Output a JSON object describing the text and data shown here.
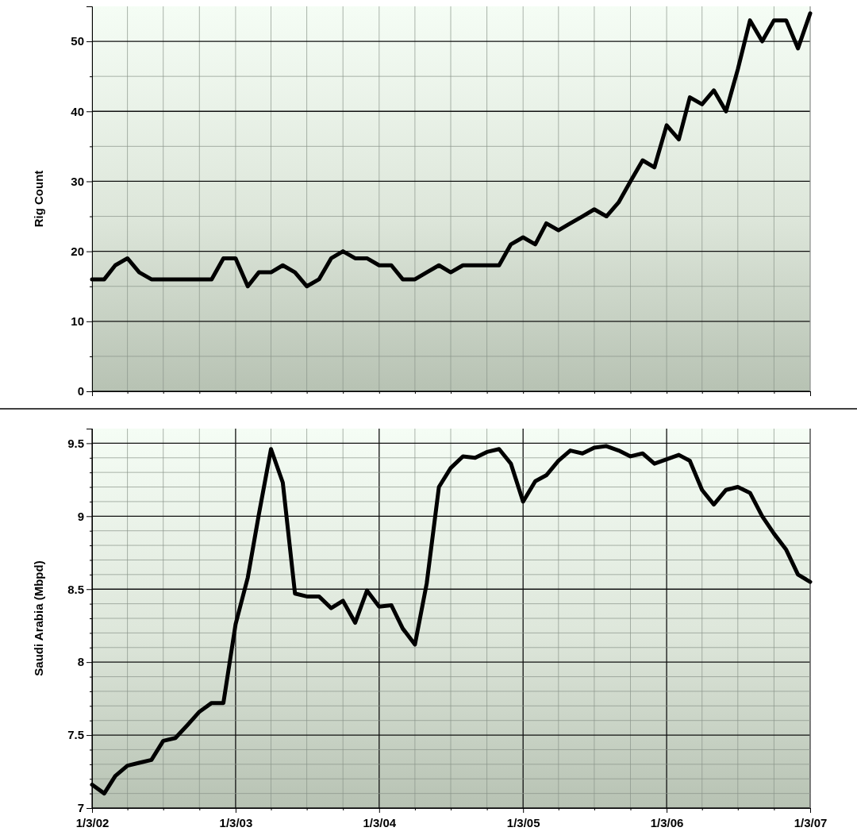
{
  "chart_data": [
    {
      "type": "line",
      "ylabel": "Rig Count",
      "tick_labels": "y",
      "grid": true,
      "marker": "none",
      "line_style": "solid",
      "x": [
        "2002-01",
        "2002-02",
        "2002-03",
        "2002-04",
        "2002-05",
        "2002-06",
        "2002-07",
        "2002-08",
        "2002-09",
        "2002-10",
        "2002-11",
        "2002-12",
        "2003-01",
        "2003-02",
        "2003-03",
        "2003-04",
        "2003-05",
        "2003-06",
        "2003-07",
        "2003-08",
        "2003-09",
        "2003-10",
        "2003-11",
        "2003-12",
        "2004-01",
        "2004-02",
        "2004-03",
        "2004-04",
        "2004-05",
        "2004-06",
        "2004-07",
        "2004-08",
        "2004-09",
        "2004-10",
        "2004-11",
        "2004-12",
        "2005-01",
        "2005-02",
        "2005-03",
        "2005-04",
        "2005-05",
        "2005-06",
        "2005-07",
        "2005-08",
        "2005-09",
        "2005-10",
        "2005-11",
        "2005-12",
        "2006-01",
        "2006-02",
        "2006-03",
        "2006-04",
        "2006-05",
        "2006-06",
        "2006-07",
        "2006-08",
        "2006-09",
        "2006-10",
        "2006-11",
        "2006-12",
        "2007-01"
      ],
      "xlim": [
        "2002-01",
        "2007-01"
      ],
      "xticks": [
        {
          "value": "2002-01",
          "label": null
        },
        {
          "value": "2002-04",
          "label": null
        },
        {
          "value": "2002-07",
          "label": null
        },
        {
          "value": "2002-10",
          "label": null
        },
        {
          "value": "2003-01",
          "label": null
        },
        {
          "value": "2003-04",
          "label": null
        },
        {
          "value": "2003-07",
          "label": null
        },
        {
          "value": "2003-10",
          "label": null
        },
        {
          "value": "2004-01",
          "label": null
        },
        {
          "value": "2004-04",
          "label": null
        },
        {
          "value": "2004-07",
          "label": null
        },
        {
          "value": "2004-10",
          "label": null
        },
        {
          "value": "2005-01",
          "label": null
        },
        {
          "value": "2005-04",
          "label": null
        },
        {
          "value": "2005-07",
          "label": null
        },
        {
          "value": "2005-10",
          "label": null
        },
        {
          "value": "2006-01",
          "label": null
        },
        {
          "value": "2006-04",
          "label": null
        },
        {
          "value": "2006-07",
          "label": null
        },
        {
          "value": "2006-10",
          "label": null
        },
        {
          "value": "2007-01",
          "label": null
        }
      ],
      "ylim": [
        0,
        55
      ],
      "yticks": [
        0,
        {
          "value": 5,
          "label": null
        },
        10,
        {
          "value": 15,
          "label": null
        },
        20,
        {
          "value": 25,
          "label": null
        },
        30,
        {
          "value": 35,
          "label": null
        },
        40,
        {
          "value": 45,
          "label": null
        },
        50
      ],
      "series": [
        {
          "color": "#000000",
          "values": [
            16,
            16,
            18,
            19,
            17,
            16,
            16,
            16,
            16,
            16,
            16,
            19,
            19,
            15,
            17,
            17,
            18,
            17,
            15,
            16,
            19,
            20,
            19,
            19,
            18,
            18,
            16,
            16,
            17,
            18,
            17,
            18,
            18,
            18,
            18,
            21,
            22,
            21,
            24,
            23,
            24,
            25,
            26,
            25,
            27,
            30,
            33,
            32,
            38,
            36,
            42,
            41,
            43,
            40,
            46,
            53,
            50,
            53,
            53,
            49,
            54
          ]
        }
      ]
    },
    {
      "type": "line",
      "ylabel": "Saudi Arabia (Mbpd)",
      "grid": true,
      "marker": "none",
      "line_style": "solid",
      "x": [
        "2002-01",
        "2002-02",
        "2002-03",
        "2002-04",
        "2002-05",
        "2002-06",
        "2002-07",
        "2002-08",
        "2002-09",
        "2002-10",
        "2002-11",
        "2002-12",
        "2003-01",
        "2003-02",
        "2003-03",
        "2003-04",
        "2003-05",
        "2003-06",
        "2003-07",
        "2003-08",
        "2003-09",
        "2003-10",
        "2003-11",
        "2003-12",
        "2004-01",
        "2004-02",
        "2004-03",
        "2004-04",
        "2004-05",
        "2004-06",
        "2004-07",
        "2004-08",
        "2004-09",
        "2004-10",
        "2004-11",
        "2004-12",
        "2005-01",
        "2005-02",
        "2005-03",
        "2005-04",
        "2005-05",
        "2005-06",
        "2005-07",
        "2005-08",
        "2005-09",
        "2005-10",
        "2005-11",
        "2005-12",
        "2006-01",
        "2006-02",
        "2006-03",
        "2006-04",
        "2006-05",
        "2006-06",
        "2006-07",
        "2006-08",
        "2006-09",
        "2006-10",
        "2006-11",
        "2006-12",
        "2007-01"
      ],
      "xlim": [
        "2002-01",
        "2007-01"
      ],
      "xticks": [
        {
          "value": "2002-01",
          "label": "1/3/02"
        },
        {
          "value": "2002-04",
          "label": null
        },
        {
          "value": "2002-07",
          "label": null
        },
        {
          "value": "2002-10",
          "label": null
        },
        {
          "value": "2003-01",
          "label": "1/3/03"
        },
        {
          "value": "2003-04",
          "label": null
        },
        {
          "value": "2003-07",
          "label": null
        },
        {
          "value": "2003-10",
          "label": null
        },
        {
          "value": "2004-01",
          "label": "1/3/04"
        },
        {
          "value": "2004-04",
          "label": null
        },
        {
          "value": "2004-07",
          "label": null
        },
        {
          "value": "2004-10",
          "label": null
        },
        {
          "value": "2005-01",
          "label": "1/3/05"
        },
        {
          "value": "2005-04",
          "label": null
        },
        {
          "value": "2005-07",
          "label": null
        },
        {
          "value": "2005-10",
          "label": null
        },
        {
          "value": "2006-01",
          "label": "1/3/06"
        },
        {
          "value": "2006-04",
          "label": null
        },
        {
          "value": "2006-07",
          "label": null
        },
        {
          "value": "2006-10",
          "label": null
        },
        {
          "value": "2007-01",
          "label": "1/3/07"
        }
      ],
      "ylim": [
        7,
        9.6
      ],
      "yticks": [
        7,
        {
          "value": 7.1,
          "label": null
        },
        {
          "value": 7.2,
          "label": null
        },
        {
          "value": 7.3,
          "label": null
        },
        {
          "value": 7.4,
          "label": null
        },
        7.5,
        {
          "value": 7.6,
          "label": null
        },
        {
          "value": 7.7,
          "label": null
        },
        {
          "value": 7.8,
          "label": null
        },
        {
          "value": 7.9,
          "label": null
        },
        8,
        {
          "value": 8.1,
          "label": null
        },
        {
          "value": 8.2,
          "label": null
        },
        {
          "value": 8.3,
          "label": null
        },
        {
          "value": 8.4,
          "label": null
        },
        8.5,
        {
          "value": 8.6,
          "label": null
        },
        {
          "value": 8.7,
          "label": null
        },
        {
          "value": 8.8,
          "label": null
        },
        {
          "value": 8.9,
          "label": null
        },
        9,
        {
          "value": 9.1,
          "label": null
        },
        {
          "value": 9.2,
          "label": null
        },
        {
          "value": 9.3,
          "label": null
        },
        {
          "value": 9.4,
          "label": null
        },
        9.5
      ],
      "series": [
        {
          "color": "#000000",
          "values": [
            7.16,
            7.1,
            7.22,
            7.29,
            7.31,
            7.33,
            7.46,
            7.48,
            7.57,
            7.66,
            7.72,
            7.72,
            8.26,
            8.58,
            9.01,
            9.46,
            9.23,
            8.47,
            8.45,
            8.45,
            8.37,
            8.42,
            8.27,
            8.49,
            8.38,
            8.39,
            8.23,
            8.12,
            8.54,
            9.2,
            9.33,
            9.41,
            9.4,
            9.44,
            9.46,
            9.36,
            9.1,
            9.24,
            9.28,
            9.38,
            9.45,
            9.43,
            9.47,
            9.48,
            9.45,
            9.41,
            9.43,
            9.36,
            9.39,
            9.42,
            9.38,
            9.18,
            9.08,
            9.18,
            9.2,
            9.16,
            9,
            8.88,
            8.77,
            8.6,
            8.55
          ]
        }
      ]
    }
  ]
}
